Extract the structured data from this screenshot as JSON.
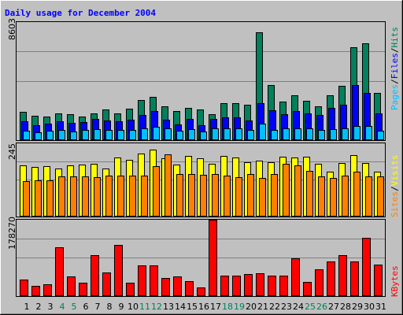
{
  "chart_data": [
    {
      "type": "bar",
      "title": "Daily usage for December 2004",
      "categories": [
        "1",
        "2",
        "3",
        "4",
        "5",
        "6",
        "7",
        "8",
        "9",
        "10",
        "11",
        "12",
        "13",
        "14",
        "15",
        "16",
        "17",
        "18",
        "19",
        "20",
        "21",
        "22",
        "23",
        "24",
        "25",
        "26",
        "27",
        "28",
        "29",
        "30",
        "31"
      ],
      "weekend_days": [
        "4",
        "5",
        "11",
        "12",
        "18",
        "19",
        "25",
        "26"
      ],
      "weekend_color": "#00805c",
      "max_label": "8603",
      "ylim": [
        0,
        8603
      ],
      "legend": [
        "Pages",
        "/",
        "Files",
        "/",
        "Hits"
      ],
      "series": [
        {
          "name": "Hits",
          "color": "#00805c",
          "values": [
            2040,
            1730,
            1700,
            1900,
            1870,
            1700,
            1890,
            2200,
            1910,
            2250,
            2860,
            3100,
            2420,
            2100,
            2320,
            2220,
            1840,
            2640,
            2650,
            2550,
            7840,
            4000,
            2760,
            3260,
            2810,
            2420,
            3260,
            3950,
            6730,
            7060,
            3430
          ]
        },
        {
          "name": "Files",
          "color": "#0000ff",
          "values": [
            1310,
            1040,
            1160,
            1330,
            1200,
            1290,
            1490,
            1370,
            1340,
            1440,
            1770,
            2070,
            1470,
            1110,
            1490,
            1030,
            1500,
            1600,
            1610,
            1360,
            2630,
            2110,
            1850,
            2050,
            1930,
            1790,
            2320,
            2560,
            3970,
            3400,
            1890
          ]
        },
        {
          "name": "Pages",
          "color": "#00bfff",
          "values": [
            610,
            500,
            620,
            690,
            580,
            720,
            770,
            670,
            670,
            680,
            790,
            920,
            800,
            620,
            730,
            600,
            830,
            810,
            780,
            700,
            1170,
            720,
            780,
            800,
            780,
            700,
            750,
            780,
            1000,
            960,
            660
          ]
        }
      ]
    },
    {
      "type": "bar",
      "max_label": "245",
      "ylim": [
        0,
        245
      ],
      "legend": [
        "Sites",
        "/",
        "Visits"
      ],
      "series": [
        {
          "name": "Visits",
          "color": "#ffff00",
          "values": [
            170,
            166,
            167,
            160,
            170,
            174,
            175,
            160,
            197,
            189,
            210,
            225,
            194,
            172,
            202,
            195,
            175,
            202,
            198,
            180,
            186,
            180,
            200,
            196,
            201,
            176,
            148,
            179,
            205,
            178,
            150
          ]
        },
        {
          "name": "Sites",
          "color": "#ff8000",
          "values": [
            118,
            121,
            121,
            133,
            133,
            133,
            131,
            135,
            135,
            135,
            135,
            169,
            207,
            141,
            141,
            138,
            141,
            135,
            131,
            141,
            129,
            140,
            176,
            170,
            153,
            133,
            128,
            137,
            150,
            132,
            133
          ]
        }
      ]
    },
    {
      "type": "bar",
      "max_label": "178270",
      "ylim": [
        0,
        178270
      ],
      "legend": [
        "KBytes"
      ],
      "series": [
        {
          "name": "KBytes",
          "color": "#ff0000",
          "values": [
            37470,
            22680,
            25840,
            113110,
            44550,
            30190,
            95080,
            54000,
            118370,
            30530,
            70880,
            70880,
            40110,
            44550,
            34250,
            17990,
            178270,
            47170,
            47170,
            50190,
            51920,
            47170,
            45560,
            88120,
            31680,
            60730,
            80700,
            94030,
            80700,
            135170,
            71930
          ]
        }
      ]
    }
  ]
}
